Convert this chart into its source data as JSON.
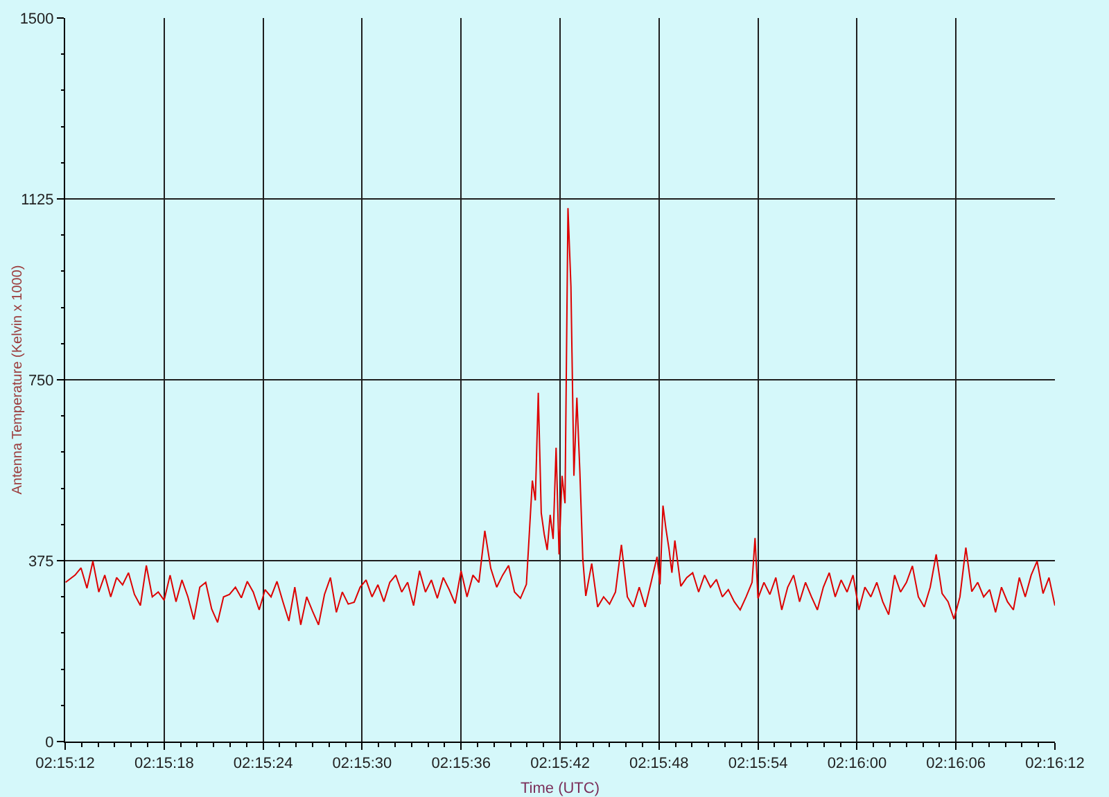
{
  "chart_data": {
    "type": "line",
    "xlabel": "Time (UTC)",
    "ylabel": "Antenna Temperature (Kelvin x 1000)",
    "xlim": [
      2.253333,
      2.27
    ],
    "ylim": [
      0,
      1500
    ],
    "xticks": [
      {
        "value": 2.253333,
        "label": "02:15:12"
      },
      {
        "value": 2.253611,
        "label": null
      },
      {
        "value": 2.253889,
        "label": null
      },
      {
        "value": 2.254167,
        "label": null
      },
      {
        "value": 2.254444,
        "label": null
      },
      {
        "value": 2.254722,
        "label": null
      },
      {
        "value": 2.255,
        "label": "02:15:18"
      },
      {
        "value": 2.255278,
        "label": null
      },
      {
        "value": 2.255556,
        "label": null
      },
      {
        "value": 2.255833,
        "label": null
      },
      {
        "value": 2.256111,
        "label": null
      },
      {
        "value": 2.256389,
        "label": null
      },
      {
        "value": 2.256667,
        "label": "02:15:24"
      },
      {
        "value": 2.256944,
        "label": null
      },
      {
        "value": 2.257222,
        "label": null
      },
      {
        "value": 2.2575,
        "label": null
      },
      {
        "value": 2.257778,
        "label": null
      },
      {
        "value": 2.258056,
        "label": null
      },
      {
        "value": 2.258333,
        "label": "02:15:30"
      },
      {
        "value": 2.258611,
        "label": null
      },
      {
        "value": 2.258889,
        "label": null
      },
      {
        "value": 2.259167,
        "label": null
      },
      {
        "value": 2.259444,
        "label": null
      },
      {
        "value": 2.259722,
        "label": null
      },
      {
        "value": 2.26,
        "label": "02:15:36"
      },
      {
        "value": 2.260278,
        "label": null
      },
      {
        "value": 2.260556,
        "label": null
      },
      {
        "value": 2.260833,
        "label": null
      },
      {
        "value": 2.261111,
        "label": null
      },
      {
        "value": 2.261389,
        "label": null
      },
      {
        "value": 2.261667,
        "label": "02:15:42"
      },
      {
        "value": 2.261944,
        "label": null
      },
      {
        "value": 2.262222,
        "label": null
      },
      {
        "value": 2.2625,
        "label": null
      },
      {
        "value": 2.262778,
        "label": null
      },
      {
        "value": 2.263056,
        "label": null
      },
      {
        "value": 2.263333,
        "label": "02:15:48"
      },
      {
        "value": 2.263611,
        "label": null
      },
      {
        "value": 2.263889,
        "label": null
      },
      {
        "value": 2.264167,
        "label": null
      },
      {
        "value": 2.264444,
        "label": null
      },
      {
        "value": 2.264722,
        "label": null
      },
      {
        "value": 2.265,
        "label": "02:15:54"
      },
      {
        "value": 2.265278,
        "label": null
      },
      {
        "value": 2.265556,
        "label": null
      },
      {
        "value": 2.265833,
        "label": null
      },
      {
        "value": 2.266111,
        "label": null
      },
      {
        "value": 2.266389,
        "label": null
      },
      {
        "value": 2.266667,
        "label": "02:16:00"
      },
      {
        "value": 2.266944,
        "label": null
      },
      {
        "value": 2.267222,
        "label": null
      },
      {
        "value": 2.2675,
        "label": null
      },
      {
        "value": 2.267778,
        "label": null
      },
      {
        "value": 2.268056,
        "label": null
      },
      {
        "value": 2.268333,
        "label": "02:16:06"
      },
      {
        "value": 2.268611,
        "label": null
      },
      {
        "value": 2.268889,
        "label": null
      },
      {
        "value": 2.269167,
        "label": null
      },
      {
        "value": 2.269444,
        "label": null
      },
      {
        "value": 2.269722,
        "label": null
      },
      {
        "value": 2.27,
        "label": "02:16:12"
      }
    ],
    "yticks": [
      0,
      {
        "value": 75,
        "label": null
      },
      {
        "value": 150,
        "label": null
      },
      {
        "value": 225,
        "label": null
      },
      {
        "value": 300,
        "label": null
      },
      375,
      {
        "value": 450,
        "label": null
      },
      {
        "value": 525,
        "label": null
      },
      {
        "value": 600,
        "label": null
      },
      {
        "value": 675,
        "label": null
      },
      750,
      {
        "value": 825,
        "label": null
      },
      {
        "value": 900,
        "label": null
      },
      {
        "value": 975,
        "label": null
      },
      {
        "value": 1050,
        "label": null
      },
      1125,
      {
        "value": 1200,
        "label": null
      },
      {
        "value": 1275,
        "label": null
      },
      {
        "value": 1350,
        "label": null
      },
      {
        "value": 1425,
        "label": null
      },
      1500
    ],
    "grid": true,
    "line_style": "solid",
    "x": [
      2.25334,
      2.2535,
      2.2536,
      2.2537,
      2.2538,
      2.2539,
      2.254,
      2.2541,
      2.2542,
      2.2543,
      2.2544,
      2.2545,
      2.2546,
      2.2547,
      2.2548,
      2.2549,
      2.255,
      2.2551,
      2.2552,
      2.2553,
      2.2554,
      2.2555,
      2.2556,
      2.2557,
      2.2558,
      2.2559,
      2.256,
      2.2561,
      2.2562,
      2.2563,
      2.2564,
      2.2565,
      2.2566,
      2.2567,
      2.2568,
      2.2569,
      2.257,
      2.2571,
      2.2572,
      2.2573,
      2.2574,
      2.2575,
      2.2576,
      2.2577,
      2.2578,
      2.2579,
      2.258,
      2.2581,
      2.2582,
      2.2583,
      2.2584,
      2.2585,
      2.2586,
      2.2587,
      2.2588,
      2.2589,
      2.259,
      2.2591,
      2.2592,
      2.2593,
      2.2594,
      2.2595,
      2.2596,
      2.2597,
      2.2598,
      2.2599,
      2.26,
      2.2601,
      2.2602,
      2.2603,
      2.2604,
      2.2605,
      2.2606,
      2.2607,
      2.2608,
      2.2609,
      2.261,
      2.2611,
      2.2612,
      2.26125,
      2.2613,
      2.26135,
      2.2614,
      2.26145,
      2.2615,
      2.26155,
      2.2616,
      2.26165,
      2.2617,
      2.26175,
      2.2618,
      2.26185,
      2.2619,
      2.26195,
      2.262,
      2.26205,
      2.2621,
      2.2622,
      2.2623,
      2.2624,
      2.2625,
      2.2626,
      2.2627,
      2.2628,
      2.2629,
      2.263,
      2.2631,
      2.2632,
      2.2633,
      2.26335,
      2.2634,
      2.26345,
      2.2635,
      2.26355,
      2.2636,
      2.2637,
      2.2638,
      2.2639,
      2.264,
      2.2641,
      2.2642,
      2.2643,
      2.2644,
      2.2645,
      2.2646,
      2.2647,
      2.2648,
      2.2649,
      2.26495,
      2.265,
      2.2651,
      2.2652,
      2.2653,
      2.2654,
      2.2655,
      2.2656,
      2.2657,
      2.2658,
      2.2659,
      2.266,
      2.2661,
      2.2662,
      2.2663,
      2.2664,
      2.2665,
      2.2666,
      2.2667,
      2.2668,
      2.2669,
      2.267,
      2.2671,
      2.2672,
      2.2673,
      2.2674,
      2.2675,
      2.2676,
      2.2677,
      2.2678,
      2.2679,
      2.268,
      2.2681,
      2.2682,
      2.2683,
      2.2684,
      2.2685,
      2.2686,
      2.2687,
      2.2688,
      2.2689,
      2.269,
      2.2691,
      2.2692,
      2.2693,
      2.2694,
      2.2695,
      2.2696,
      2.2697,
      2.2698,
      2.2699,
      2.27
    ],
    "series": [
      {
        "color": "#dd0000",
        "values": [
          330,
          345,
          360,
          318,
          374,
          310,
          345,
          300,
          340,
          325,
          350,
          305,
          282,
          365,
          300,
          310,
          293,
          345,
          290,
          335,
          300,
          253,
          320,
          330,
          275,
          247,
          300,
          305,
          320,
          298,
          332,
          310,
          273,
          315,
          300,
          332,
          290,
          250,
          320,
          242,
          300,
          270,
          242,
          305,
          340,
          268,
          310,
          285,
          289,
          320,
          335,
          300,
          325,
          290,
          330,
          345,
          310,
          330,
          282,
          354,
          310,
          335,
          297,
          340,
          315,
          286,
          354,
          300,
          345,
          330,
          437,
          359,
          320,
          345,
          365,
          310,
          297,
          326,
          541,
          500,
          723,
          474,
          430,
          397,
          470,
          420,
          609,
          388,
          551,
          494,
          1106,
          943,
          551,
          713,
          560,
          378,
          302,
          369,
          279,
          300,
          285,
          310,
          408,
          300,
          279,
          320,
          279,
          330,
          383,
          326,
          489,
          441,
          400,
          350,
          417,
          322,
          340,
          350,
          310,
          345,
          320,
          336,
          300,
          315,
          290,
          273,
          300,
          330,
          422,
          297,
          330,
          305,
          340,
          273,
          320,
          345,
          290,
          330,
          300,
          273,
          320,
          350,
          300,
          335,
          310,
          345,
          273,
          320,
          300,
          330,
          290,
          263,
          345,
          310,
          330,
          364,
          300,
          279,
          320,
          388,
          307,
          290,
          254,
          300,
          402,
          311,
          330,
          300,
          315,
          268,
          320,
          290,
          273,
          340,
          300,
          345,
          374,
          307,
          340,
          282
        ]
      }
    ]
  }
}
